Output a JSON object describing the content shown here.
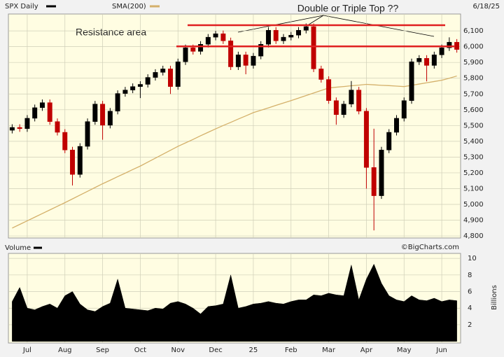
{
  "chart_data": [
    {
      "type": "candlestick",
      "title": "SPX Daily",
      "date_label": "6/18/25",
      "open": [
        5470,
        5488,
        5480,
        5546,
        5613,
        5645,
        5525,
        5457,
        5345,
        5190,
        5368,
        5525,
        5636,
        5502,
        5591,
        5703,
        5725,
        5747,
        5761,
        5805,
        5837,
        5859,
        5747,
        5904,
        5993,
        5970,
        6015,
        6060,
        6082,
        6037,
        5872,
        5948,
        5881,
        5940,
        6015,
        6104,
        6037,
        6060,
        6073,
        6104,
        6127,
        5859,
        5792,
        5658,
        5569,
        5636,
        5725,
        5591,
        5234,
        5055,
        5345,
        5457,
        5546,
        5658,
        5904,
        5926,
        5881,
        5948,
        5993,
        6028
      ],
      "high": [
        5508,
        5508,
        5566,
        5633,
        5665,
        5665,
        5545,
        5477,
        5365,
        5388,
        5545,
        5656,
        5656,
        5611,
        5723,
        5745,
        5767,
        5781,
        5825,
        5857,
        5879,
        5879,
        5924,
        6013,
        6013,
        6035,
        6080,
        6100,
        6102,
        6057,
        5968,
        5968,
        5960,
        6035,
        6124,
        6124,
        6080,
        6093,
        6124,
        6147,
        6147,
        5879,
        5812,
        5678,
        5656,
        5782,
        5745,
        5611,
        5480,
        5365,
        5477,
        5566,
        5678,
        5924,
        5946,
        5946,
        5968,
        6013,
        6059,
        6048
      ],
      "low": [
        5450,
        5460,
        5460,
        5526,
        5593,
        5505,
        5437,
        5325,
        5120,
        5170,
        5348,
        5505,
        5410,
        5482,
        5571,
        5683,
        5705,
        5674,
        5741,
        5785,
        5817,
        5700,
        5727,
        5884,
        5950,
        5950,
        5995,
        6040,
        6017,
        5852,
        5852,
        5825,
        5861,
        5920,
        5995,
        6017,
        6017,
        6040,
        6053,
        6084,
        5839,
        5772,
        5638,
        5505,
        5549,
        5616,
        5571,
        5100,
        4835,
        5035,
        5325,
        5437,
        5526,
        5638,
        5884,
        5780,
        5861,
        5928,
        5973,
        5962
      ],
      "close": [
        5488,
        5480,
        5546,
        5613,
        5645,
        5525,
        5457,
        5345,
        5190,
        5368,
        5525,
        5636,
        5502,
        5591,
        5703,
        5725,
        5747,
        5761,
        5805,
        5837,
        5859,
        5747,
        5904,
        5993,
        5970,
        6015,
        6060,
        6082,
        6037,
        5872,
        5948,
        5881,
        5940,
        6015,
        6104,
        6037,
        6060,
        6073,
        6104,
        6127,
        5859,
        5792,
        5658,
        5569,
        5636,
        5725,
        5591,
        5234,
        5055,
        5345,
        5457,
        5546,
        5658,
        5904,
        5926,
        5881,
        5948,
        5993,
        6028,
        5982
      ],
      "up_color": "#000000",
      "down_color": "#c00000",
      "series": [
        {
          "name": "SMA(200)",
          "color": "#d4b06a",
          "values": [
            4850,
            4873,
            4896,
            4919,
            4942,
            4965,
            4988,
            5011,
            5035,
            5059,
            5083,
            5107,
            5131,
            5153,
            5176,
            5198,
            5221,
            5243,
            5268,
            5293,
            5318,
            5343,
            5368,
            5390,
            5412,
            5435,
            5457,
            5479,
            5500,
            5520,
            5541,
            5561,
            5582,
            5597,
            5612,
            5628,
            5643,
            5658,
            5674,
            5690,
            5706,
            5722,
            5738,
            5743,
            5747,
            5752,
            5756,
            5761,
            5758,
            5755,
            5753,
            5750,
            5747,
            5755,
            5763,
            5771,
            5779,
            5787,
            5800,
            5814
          ]
        }
      ],
      "ylim": [
        4787,
        6207
      ],
      "yticks": [
        {
          "value": 4800,
          "label": "4,800"
        },
        {
          "value": 4900,
          "label": "4,900"
        },
        {
          "value": 5000,
          "label": "5,000"
        },
        {
          "value": 5100,
          "label": "5,100"
        },
        {
          "value": 5200,
          "label": "5,200"
        },
        {
          "value": 5300,
          "label": "5,300"
        },
        {
          "value": 5400,
          "label": "5,400"
        },
        {
          "value": 5500,
          "label": "5,500"
        },
        {
          "value": 5600,
          "label": "5,600"
        },
        {
          "value": 5700,
          "label": "5,700"
        },
        {
          "value": 5800,
          "label": "5,800"
        },
        {
          "value": 5900,
          "label": "5,900"
        },
        {
          "value": 6000,
          "label": "6,000"
        },
        {
          "value": 6100,
          "label": "6,100"
        }
      ],
      "grid": true,
      "resistance_lines": {
        "color": "#e02020",
        "values": [
          6136,
          6002
        ]
      },
      "annotations": [
        "Resistance area",
        "Double or Triple Top ??"
      ]
    },
    {
      "type": "area",
      "title": "Volume",
      "source": "©BigCharts.com",
      "ylabel": "Billions",
      "categories": [
        null,
        null,
        "Jul",
        null,
        null,
        null,
        null,
        "Aug",
        null,
        null,
        null,
        null,
        "Sep",
        null,
        null,
        null,
        null,
        "Oct",
        null,
        null,
        null,
        null,
        "Nov",
        null,
        null,
        null,
        null,
        "Dec",
        null,
        null,
        null,
        null,
        "25",
        null,
        null,
        null,
        null,
        "Feb",
        null,
        null,
        null,
        null,
        "Mar",
        null,
        null,
        null,
        null,
        "Apr",
        null,
        null,
        null,
        null,
        "May",
        null,
        null,
        null,
        null,
        "Jun",
        null,
        null
      ],
      "values": [
        4.8,
        6.5,
        4.0,
        3.8,
        4.2,
        4.5,
        4.0,
        5.5,
        6.0,
        4.5,
        3.8,
        3.6,
        4.2,
        4.6,
        7.5,
        4.0,
        3.9,
        3.8,
        3.7,
        4.0,
        3.9,
        4.6,
        4.8,
        4.5,
        4.0,
        3.3,
        4.2,
        4.3,
        4.5,
        8.0,
        4.0,
        4.2,
        4.5,
        4.6,
        4.8,
        4.6,
        4.5,
        4.8,
        5.0,
        5.0,
        5.6,
        5.5,
        5.8,
        5.6,
        5.5,
        9.2,
        5.0,
        7.5,
        9.3,
        7.0,
        5.5,
        5.0,
        4.8,
        5.5,
        5.0,
        4.9,
        5.2,
        4.8,
        5.0,
        4.9
      ],
      "color": "#000000",
      "ylim": [
        -0.2,
        10.6
      ],
      "yticks": [
        2,
        4,
        6,
        8,
        10
      ],
      "grid": true
    }
  ]
}
